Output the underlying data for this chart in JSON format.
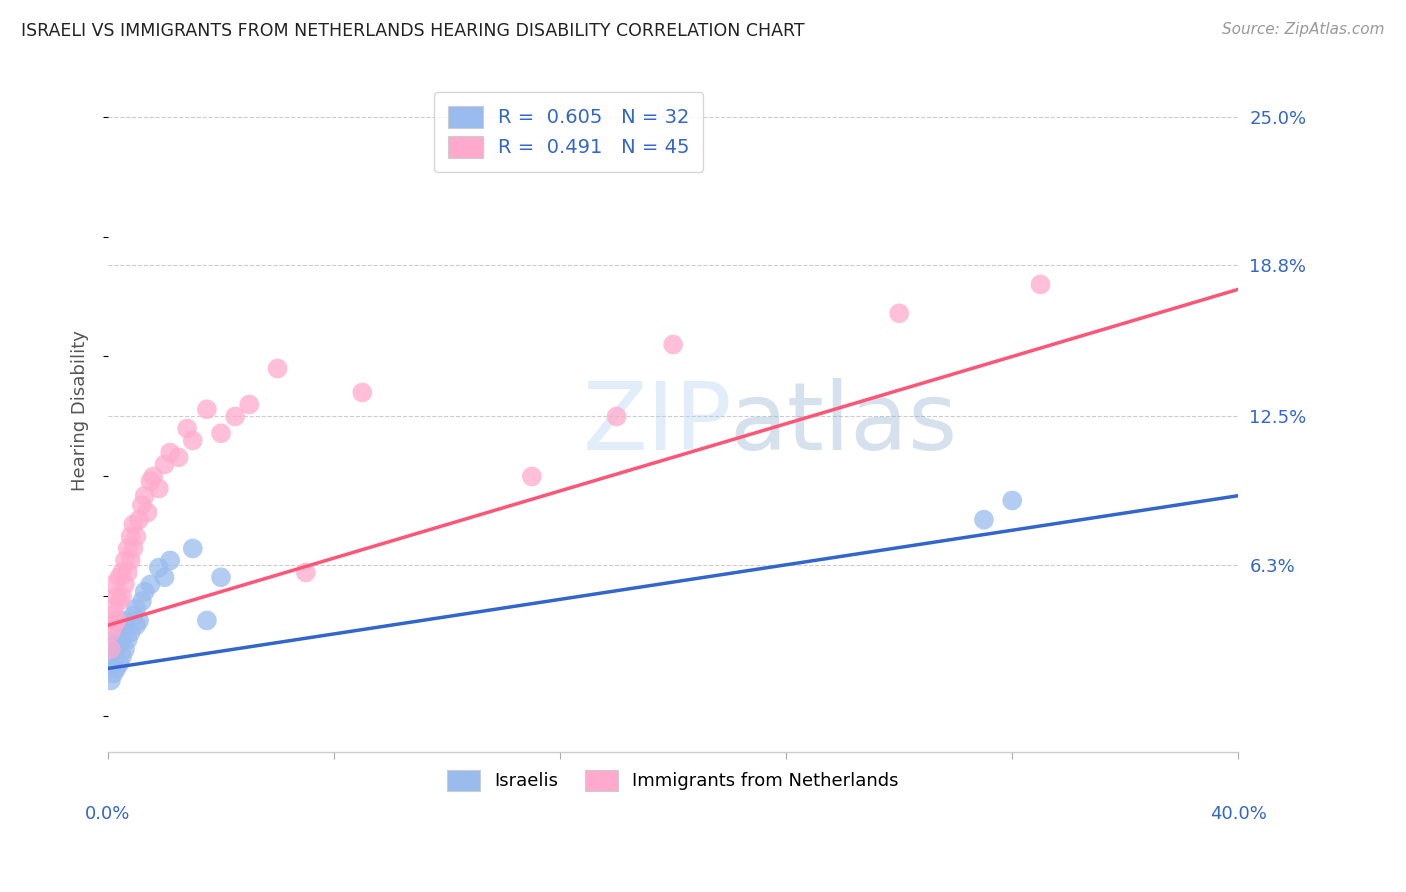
{
  "title": "ISRAELI VS IMMIGRANTS FROM NETHERLANDS HEARING DISABILITY CORRELATION CHART",
  "source": "Source: ZipAtlas.com",
  "ylabel": "Hearing Disability",
  "ytick_labels": [
    "6.3%",
    "12.5%",
    "18.8%",
    "25.0%"
  ],
  "ytick_values": [
    0.063,
    0.125,
    0.188,
    0.25
  ],
  "xlim": [
    0.0,
    0.4
  ],
  "ylim": [
    -0.015,
    0.27
  ],
  "blue_color": "#99BBEE",
  "pink_color": "#FFAACC",
  "line_blue": "#3366CC",
  "line_pink": "#FF5577",
  "background": "#FFFFFF",
  "israelis_x": [
    0.001,
    0.001,
    0.002,
    0.002,
    0.002,
    0.003,
    0.003,
    0.003,
    0.004,
    0.004,
    0.005,
    0.005,
    0.005,
    0.006,
    0.006,
    0.007,
    0.008,
    0.009,
    0.01,
    0.01,
    0.011,
    0.012,
    0.013,
    0.015,
    0.018,
    0.02,
    0.022,
    0.03,
    0.035,
    0.04,
    0.31,
    0.32
  ],
  "israelis_y": [
    0.015,
    0.022,
    0.018,
    0.025,
    0.03,
    0.02,
    0.028,
    0.035,
    0.022,
    0.03,
    0.025,
    0.032,
    0.04,
    0.028,
    0.038,
    0.032,
    0.035,
    0.042,
    0.038,
    0.045,
    0.04,
    0.048,
    0.052,
    0.055,
    0.062,
    0.058,
    0.065,
    0.07,
    0.04,
    0.058,
    0.082,
    0.09
  ],
  "netherlands_x": [
    0.001,
    0.001,
    0.001,
    0.002,
    0.002,
    0.002,
    0.003,
    0.003,
    0.004,
    0.004,
    0.005,
    0.005,
    0.006,
    0.006,
    0.007,
    0.007,
    0.008,
    0.008,
    0.009,
    0.009,
    0.01,
    0.011,
    0.012,
    0.013,
    0.014,
    0.015,
    0.016,
    0.018,
    0.02,
    0.022,
    0.025,
    0.028,
    0.03,
    0.035,
    0.04,
    0.045,
    0.05,
    0.06,
    0.07,
    0.09,
    0.15,
    0.18,
    0.2,
    0.28,
    0.33
  ],
  "netherlands_y": [
    0.028,
    0.035,
    0.042,
    0.038,
    0.045,
    0.055,
    0.04,
    0.05,
    0.048,
    0.058,
    0.05,
    0.06,
    0.055,
    0.065,
    0.06,
    0.07,
    0.065,
    0.075,
    0.07,
    0.08,
    0.075,
    0.082,
    0.088,
    0.092,
    0.085,
    0.098,
    0.1,
    0.095,
    0.105,
    0.11,
    0.108,
    0.12,
    0.115,
    0.128,
    0.118,
    0.125,
    0.13,
    0.145,
    0.06,
    0.135,
    0.1,
    0.125,
    0.155,
    0.168,
    0.18
  ],
  "blue_line_x": [
    0.0,
    0.4
  ],
  "blue_line_y": [
    0.02,
    0.092
  ],
  "pink_line_x": [
    0.0,
    0.4
  ],
  "pink_line_y": [
    0.038,
    0.178
  ]
}
